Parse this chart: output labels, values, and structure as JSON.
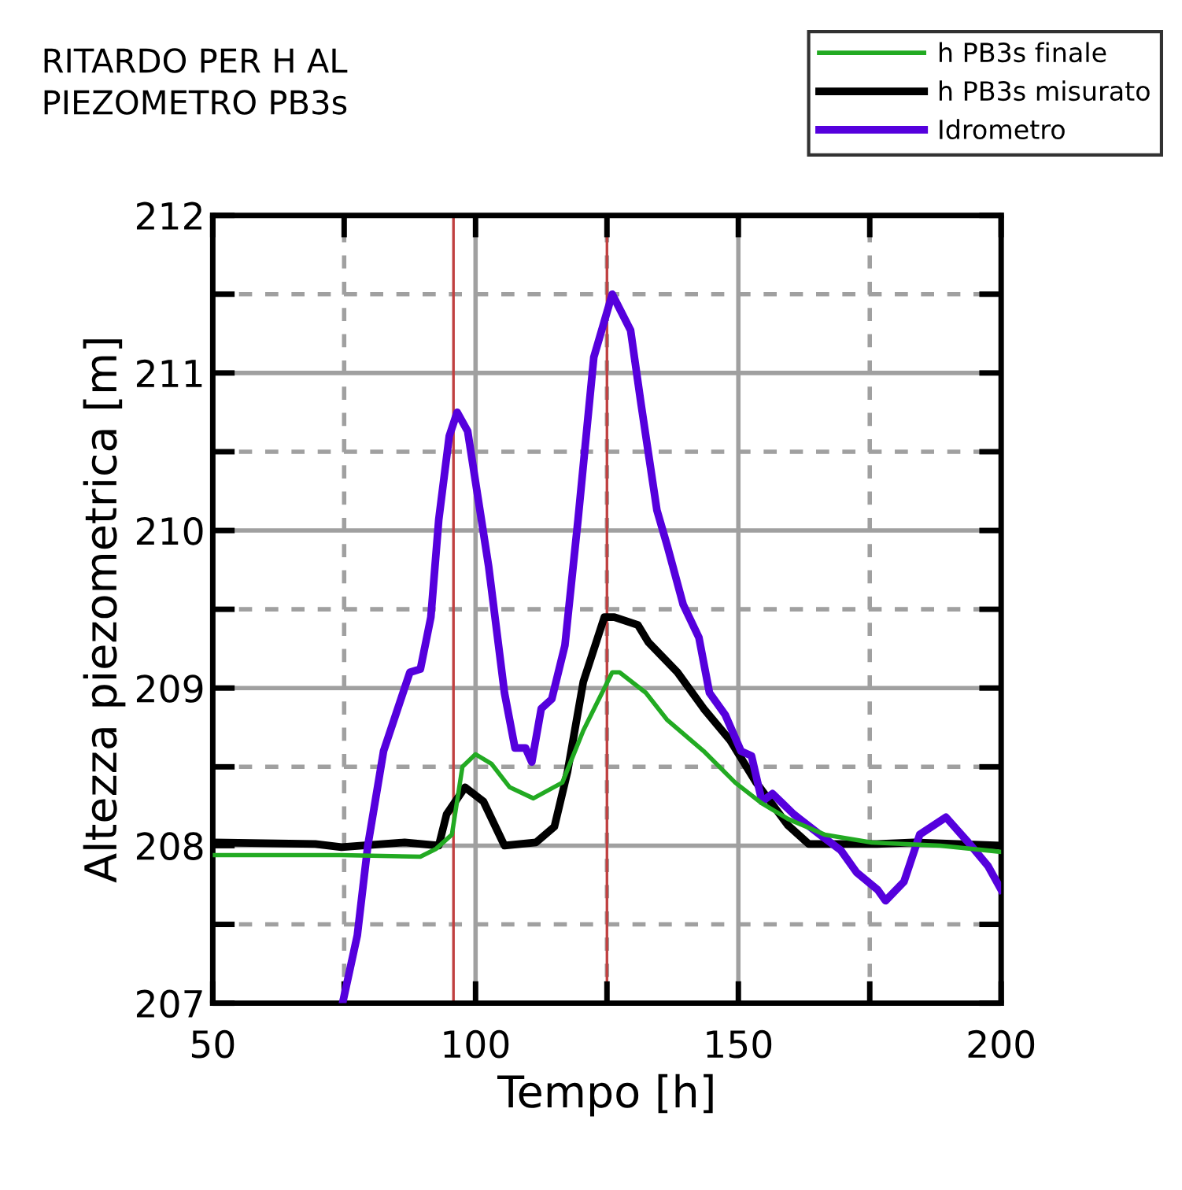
{
  "chart_data": {
    "type": "line",
    "title": "RITARDO PER H AL\nPIEZOMETRO PB3s",
    "xlabel": "Tempo [h]",
    "ylabel": "Altezza piezometrica [m]",
    "xlim": [
      50,
      200
    ],
    "ylim": [
      207,
      212
    ],
    "xticks": [
      50,
      {
        "value": 75,
        "label": null
      },
      100,
      {
        "value": 125,
        "label": null
      },
      150,
      {
        "value": 175,
        "label": null
      },
      200
    ],
    "yticks": [
      207,
      {
        "value": 207.5,
        "label": null
      },
      208,
      {
        "value": 208.5,
        "label": null
      },
      209,
      {
        "value": 209.5,
        "label": null
      },
      210,
      {
        "value": 210.5,
        "label": null
      },
      211,
      {
        "value": 211.5,
        "label": null
      },
      212
    ],
    "grid": true,
    "legend": "top right",
    "line_style": "solid",
    "marker": "none",
    "ref_lines": [
      {
        "axis": "x",
        "value": 95.8,
        "color": "#c04040"
      },
      {
        "axis": "x",
        "value": 125,
        "color": "#c04040"
      }
    ],
    "series": [
      {
        "name": "h PB3s finale",
        "color": "#22aa22",
        "x": [
          50,
          74.5,
          89.5,
          92.5,
          95.5,
          97.5,
          100,
          103,
          106.5,
          111,
          116.5,
          120.5,
          126,
          127.4,
          132.4,
          136.4,
          143.4,
          149.4,
          154.4,
          159.4,
          166.4,
          175.4,
          188.4,
          200
        ],
        "values": [
          207.94,
          207.94,
          207.93,
          207.98,
          208.07,
          208.5,
          208.58,
          208.52,
          208.37,
          208.3,
          208.4,
          208.73,
          209.1,
          209.1,
          208.97,
          208.8,
          208.6,
          208.4,
          208.27,
          208.17,
          208.07,
          208.02,
          208.0,
          207.96
        ]
      },
      {
        "name": "h PB3s misurato",
        "color": "#000000",
        "x": [
          50,
          69.5,
          74.5,
          86.5,
          93,
          94.5,
          98,
          101.5,
          105.5,
          111.5,
          115,
          117.5,
          120.5,
          124.5,
          126.4,
          130.9,
          132.9,
          138.4,
          143.4,
          148.4,
          153.4,
          159.4,
          163.4,
          176.4,
          183.4,
          200
        ],
        "values": [
          208.02,
          208.01,
          207.99,
          208.02,
          208.0,
          208.2,
          208.37,
          208.28,
          208.0,
          208.02,
          208.12,
          208.47,
          209.04,
          209.45,
          209.45,
          209.4,
          209.29,
          209.1,
          208.87,
          208.67,
          208.4,
          208.13,
          208.01,
          208.01,
          208.02,
          208.0
        ]
      },
      {
        "name": "Idrometro",
        "color": "#5500dd",
        "x": [
          74.7,
          77.5,
          79.5,
          82.5,
          87.5,
          89.5,
          91.5,
          93,
          95,
          96.5,
          98.5,
          102.5,
          105.5,
          107.5,
          109.5,
          110.7,
          112.5,
          114.5,
          117,
          119.5,
          122.5,
          126,
          129.5,
          131.5,
          134.5,
          136.5,
          139.5,
          142.5,
          144.5,
          147.5,
          150.5,
          152.5,
          154.5,
          156.5,
          160.5,
          165.5,
          169.5,
          172.5,
          176.5,
          178,
          181.5,
          184.5,
          189.5,
          193.5,
          197.5,
          200
        ],
        "values": [
          207.0,
          207.43,
          208.0,
          208.6,
          209.1,
          209.12,
          209.45,
          210.07,
          210.6,
          210.75,
          210.63,
          209.77,
          208.97,
          208.62,
          208.62,
          208.53,
          208.87,
          208.93,
          209.27,
          210.07,
          211.1,
          211.5,
          211.27,
          210.8,
          210.13,
          209.9,
          209.53,
          209.32,
          208.97,
          208.83,
          208.6,
          208.57,
          208.28,
          208.33,
          208.2,
          208.07,
          207.97,
          207.83,
          207.72,
          207.65,
          207.77,
          208.07,
          208.18,
          208.03,
          207.87,
          207.72
        ]
      }
    ]
  }
}
